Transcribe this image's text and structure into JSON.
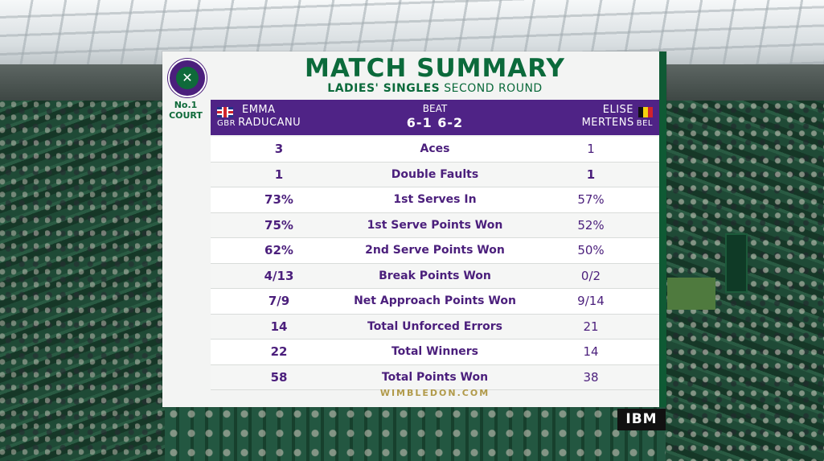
{
  "colors": {
    "purple": "#4f2386",
    "green": "#0b6a3b",
    "gold": "#b19a4a"
  },
  "logo": {
    "icon": "crossed-rackets-icon"
  },
  "court": {
    "line1": "No.1",
    "line2": "COURT"
  },
  "title": "MATCH SUMMARY",
  "subtitle": {
    "bold": "LADIES' SINGLES",
    "rest": "SECOND ROUND"
  },
  "player1": {
    "first": "EMMA",
    "last": "RADUCANU",
    "country": "GBR",
    "flag": "uk-flag-icon"
  },
  "player2": {
    "first": "ELISE",
    "last": "MERTENS",
    "country": "BEL",
    "flag": "belgium-flag-icon"
  },
  "result": {
    "verb": "BEAT",
    "score": "6-1 6-2"
  },
  "stats": [
    {
      "p1": "3",
      "label": "Aces",
      "p2": "1"
    },
    {
      "p1": "1",
      "label": "Double Faults",
      "p2": "1"
    },
    {
      "p1": "73%",
      "label": "1st Serves In",
      "p2": "57%"
    },
    {
      "p1": "75%",
      "label": "1st Serve Points Won",
      "p2": "52%"
    },
    {
      "p1": "62%",
      "label": "2nd Serve Points Won",
      "p2": "50%"
    },
    {
      "p1": "4/13",
      "label": "Break Points Won",
      "p2": "0/2"
    },
    {
      "p1": "7/9",
      "label": "Net Approach Points Won",
      "p2": "9/14"
    },
    {
      "p1": "14",
      "label": "Total Unforced Errors",
      "p2": "21"
    },
    {
      "p1": "22",
      "label": "Total Winners",
      "p2": "14"
    },
    {
      "p1": "58",
      "label": "Total Points Won",
      "p2": "38"
    }
  ],
  "footer": "WIMBLEDON.COM",
  "sponsor": "IBM"
}
